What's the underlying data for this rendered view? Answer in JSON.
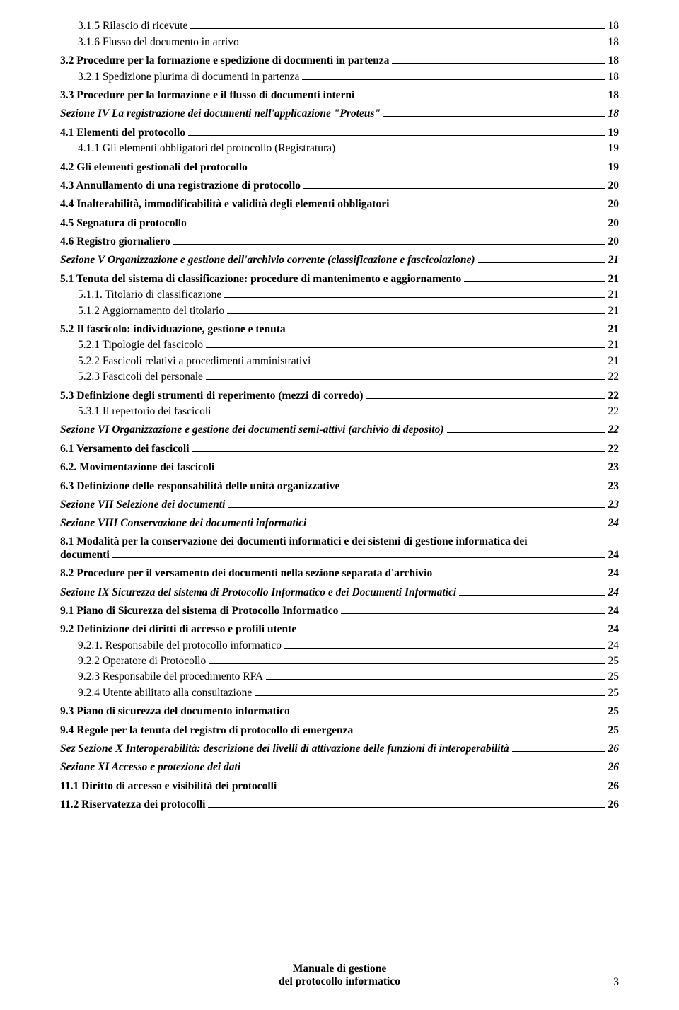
{
  "entries": [
    {
      "cls": "lvl-sub2",
      "label": "3.1.5 Rilascio di ricevute",
      "page": "18"
    },
    {
      "cls": "lvl-sub2",
      "label": "3.1.6 Flusso del documento in arrivo",
      "page": "18"
    },
    {
      "cls": "lvl-sub gap-small",
      "label": "3.2 Procedure per la formazione e spedizione di documenti in partenza",
      "page": "18"
    },
    {
      "cls": "lvl-sub2",
      "label": "3.2.1 Spedizione plurima di documenti in partenza",
      "page": "18"
    },
    {
      "cls": "lvl-sub gap-small",
      "label": "3.3 Procedure per la formazione e il flusso di documenti interni",
      "page": "18"
    },
    {
      "cls": "lvl-section gap-small",
      "label": "Sezione  IV La registrazione dei documenti nell'applicazione \"Proteus\"",
      "page": "18"
    },
    {
      "cls": "lvl-sub gap-small",
      "label": "4.1 Elementi del protocollo",
      "page": "19"
    },
    {
      "cls": "lvl-sub2",
      "label": "4.1.1 Gli elementi obbligatori del protocollo (Registratura)",
      "page": "19"
    },
    {
      "cls": "lvl-sub gap-small",
      "label": "4.2 Gli elementi gestionali del protocollo",
      "page": "19"
    },
    {
      "cls": "lvl-sub gap-small",
      "label": "4.3 Annullamento di una registrazione di protocollo",
      "page": "20"
    },
    {
      "cls": "lvl-sub gap-small",
      "label": "4.4 Inalterabilità, immodificabilità e validità degli elementi obbligatori",
      "page": "20"
    },
    {
      "cls": "lvl-sub gap-small",
      "label": "4.5 Segnatura di protocollo",
      "page": "20"
    },
    {
      "cls": "lvl-sub gap-small",
      "label": "4.6 Registro giornaliero",
      "page": "20"
    },
    {
      "cls": "lvl-section gap-small",
      "label": "Sezione V Organizzazione e gestione dell'archivio corrente (classificazione e fascicolazione)",
      "page": "21"
    },
    {
      "cls": "lvl-sub gap-small",
      "label": "5.1 Tenuta del sistema di classificazione: procedure di mantenimento e aggiornamento",
      "page": "21"
    },
    {
      "cls": "lvl-sub2",
      "label": "5.1.1. Titolario di classificazione",
      "page": "21"
    },
    {
      "cls": "lvl-sub2",
      "label": "5.1.2 Aggiornamento del titolario",
      "page": "21"
    },
    {
      "cls": "lvl-sub gap-small",
      "label": "5.2 Il fascicolo: individuazione, gestione e tenuta",
      "page": "21"
    },
    {
      "cls": "lvl-sub2",
      "label": "5.2.1 Tipologie del fascicolo",
      "page": "21"
    },
    {
      "cls": "lvl-sub2",
      "label": "5.2.2 Fascicoli relativi a procedimenti amministrativi",
      "page": "21"
    },
    {
      "cls": "lvl-sub2",
      "label": "5.2.3 Fascicoli del personale",
      "page": "22"
    },
    {
      "cls": "lvl-sub gap-small",
      "label": "5.3 Definizione degli strumenti di reperimento (mezzi di corredo)",
      "page": "22"
    },
    {
      "cls": "lvl-sub2",
      "label": "5.3.1 Il repertorio dei fascicoli",
      "page": "22"
    },
    {
      "cls": "lvl-section gap-small",
      "label": "Sezione VI Organizzazione e gestione dei documenti semi-attivi (archivio di deposito)",
      "page": "22"
    },
    {
      "cls": "lvl-sub gap-small",
      "label": "6.1 Versamento dei fascicoli",
      "page": "22"
    },
    {
      "cls": "lvl-sub gap-small",
      "label": "6.2. Movimentazione dei fascicoli",
      "page": "23"
    },
    {
      "cls": "lvl-sub gap-small",
      "label": "6.3 Definizione delle responsabilità delle unità organizzative",
      "page": "23"
    },
    {
      "cls": "lvl-section gap-small",
      "label": "Sezione VII Selezione dei documenti",
      "page": "23"
    },
    {
      "cls": "lvl-section gap-small",
      "label": "Sezione VIII Conservazione dei documenti informatici",
      "page": "24"
    },
    {
      "cls": "lvl-sub gap-small",
      "multi": true,
      "label1": "8.1 Modalità per la conservazione dei documenti informatici e dei sistemi di gestione informatica dei",
      "label2": "documenti",
      "page": "24"
    },
    {
      "cls": "lvl-sub gap-small",
      "label": "8.2 Procedure per il versamento dei documenti nella sezione separata d'archivio",
      "page": "24"
    },
    {
      "cls": "lvl-section gap-small",
      "label": "Sezione IX Sicurezza del sistema di Protocollo Informatico e dei Documenti Informatici",
      "page": "24"
    },
    {
      "cls": "lvl-sub gap-small",
      "label": "9.1 Piano di Sicurezza del sistema di Protocollo Informatico",
      "page": "24"
    },
    {
      "cls": "lvl-sub gap-small",
      "label": "9.2 Definizione dei diritti di accesso e profili utente",
      "page": "24"
    },
    {
      "cls": "lvl-sub2",
      "label": "9.2.1. Responsabile del protocollo informatico",
      "page": "24"
    },
    {
      "cls": "lvl-sub2",
      "label": "9.2.2 Operatore di Protocollo",
      "page": "25"
    },
    {
      "cls": "lvl-sub2",
      "label": "9.2.3 Responsabile del procedimento RPA",
      "page": "25"
    },
    {
      "cls": "lvl-sub2",
      "label": "9.2.4 Utente abilitato alla consultazione",
      "page": "25"
    },
    {
      "cls": "lvl-sub gap-small",
      "label": "9.3 Piano di sicurezza del documento informatico",
      "page": "25"
    },
    {
      "cls": "lvl-sub gap-small",
      "label": "9.4 Regole per la tenuta del registro di protocollo di emergenza",
      "page": "25"
    },
    {
      "cls": "lvl-section gap-small",
      "label": "Sez Sezione X Interoperabilità: descrizione dei livelli di attivazione delle funzioni di interoperabilità",
      "page": "26"
    },
    {
      "cls": "lvl-section gap-small",
      "label": "Sezione  XI Accesso e protezione dei dati",
      "page": "26"
    },
    {
      "cls": "lvl-sub gap-small",
      "label": "11.1 Diritto di accesso e visibilità dei protocolli",
      "page": "26"
    },
    {
      "cls": "lvl-sub gap-small",
      "label": "11.2 Riservatezza dei protocolli",
      "page": "26"
    }
  ],
  "footer": {
    "line1": "Manuale di gestione",
    "line2": "del protocollo informatico",
    "pagenum": "3"
  }
}
